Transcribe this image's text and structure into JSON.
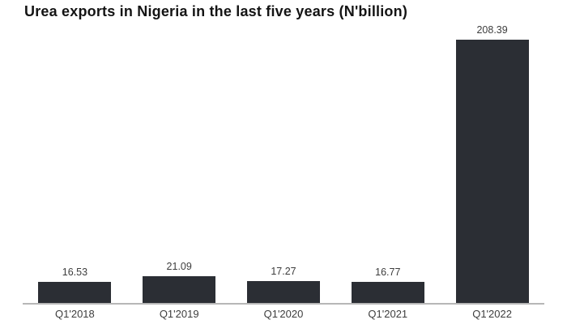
{
  "chart_data": {
    "type": "bar",
    "title": "Urea exports in Nigeria in the last five years (N'billion)",
    "categories": [
      "Q1'2018",
      "Q1'2019",
      "Q1'2020",
      "Q1'2021",
      "Q1'2022"
    ],
    "values": [
      16.53,
      21.09,
      17.27,
      16.77,
      208.39
    ],
    "value_labels": [
      "16.53",
      "21.09",
      "17.27",
      "16.77",
      "208.39"
    ],
    "xlabel": "",
    "ylabel": "",
    "ylim": [
      0,
      220
    ],
    "grid": false,
    "legend": false,
    "data_labels_position": "above-bar",
    "colors": {
      "bar": "#2b2e34",
      "axis_line": "#b7b7b7",
      "value_label": "#3d3d3d",
      "category_label": "#3d3d3d",
      "title": "#141414",
      "background": "#ffffff"
    }
  }
}
